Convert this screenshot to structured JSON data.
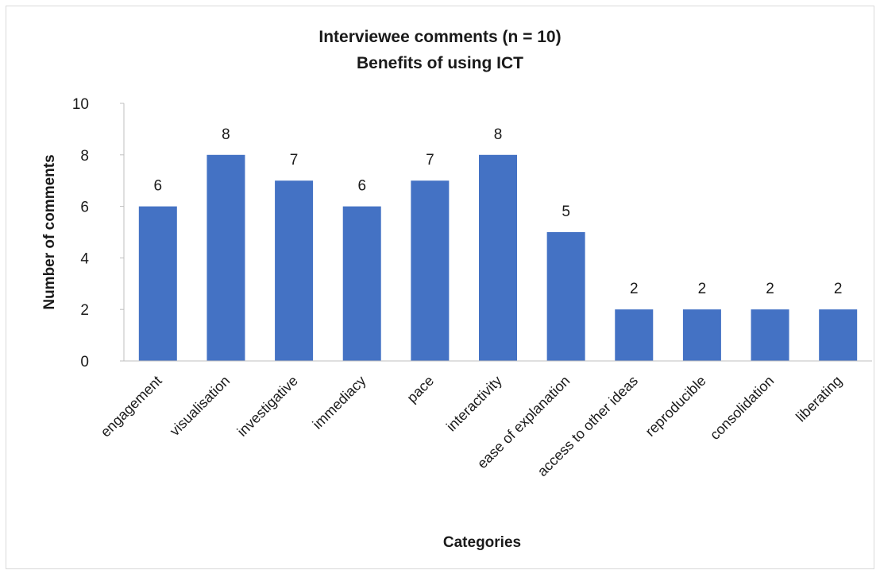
{
  "chart_data": {
    "type": "bar",
    "title": "Interviewee comments (n = 10)",
    "subtitle": "Benefits of using ICT",
    "xlabel": "Categories",
    "ylabel": "Number of comments",
    "categories": [
      "engagement",
      "visualisation",
      "investigative",
      "immediacy",
      "pace",
      "interactivity",
      "ease of explanation",
      "access to other ideas",
      "reproducible",
      "consolidation",
      "liberating"
    ],
    "values": [
      6,
      8,
      7,
      6,
      7,
      8,
      5,
      2,
      2,
      2,
      2
    ],
    "ylim": [
      0,
      10
    ],
    "yticks": [
      0,
      2,
      4,
      6,
      8,
      10
    ],
    "grid": false,
    "legend": "none",
    "bar_color": "#4472c4",
    "data_labels": true
  }
}
